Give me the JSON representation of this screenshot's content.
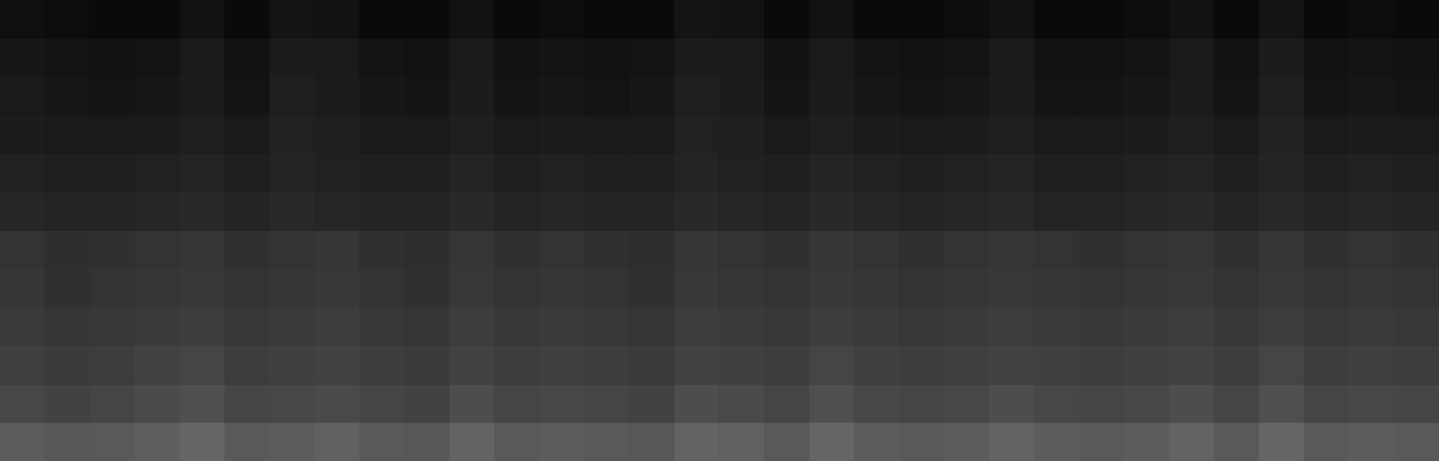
{
  "chart_data": {
    "type": "heatmap",
    "tick_labels": false,
    "grid": false,
    "zlim": [
      0,
      100
    ],
    "cells": [
      [
        6,
        5,
        4,
        4,
        7,
        4,
        8,
        7,
        4,
        4,
        7,
        4,
        5,
        4,
        4,
        8,
        7,
        4,
        7,
        4,
        4,
        5,
        7,
        4,
        4,
        5,
        7,
        4,
        8,
        4,
        5,
        4
      ],
      [
        9,
        8,
        7,
        8,
        10,
        7,
        11,
        10,
        8,
        7,
        10,
        7,
        8,
        7,
        8,
        11,
        10,
        7,
        10,
        8,
        7,
        8,
        10,
        7,
        7,
        8,
        10,
        7,
        11,
        7,
        8,
        7
      ],
      [
        10,
        9,
        8,
        9,
        11,
        8,
        12,
        11,
        9,
        8,
        11,
        8,
        9,
        8,
        9,
        12,
        11,
        8,
        11,
        9,
        8,
        9,
        11,
        8,
        8,
        9,
        11,
        8,
        12,
        8,
        9,
        8
      ],
      [
        11,
        10,
        10,
        11,
        12,
        10,
        13,
        12,
        10,
        10,
        12,
        10,
        11,
        10,
        10,
        13,
        12,
        10,
        12,
        11,
        10,
        11,
        12,
        10,
        10,
        11,
        12,
        10,
        13,
        10,
        11,
        10
      ],
      [
        13,
        12,
        12,
        13,
        14,
        12,
        14,
        13,
        12,
        12,
        14,
        12,
        13,
        12,
        12,
        14,
        13,
        12,
        14,
        13,
        12,
        13,
        14,
        12,
        12,
        13,
        14,
        12,
        14,
        12,
        13,
        12
      ],
      [
        15,
        14,
        14,
        15,
        16,
        14,
        16,
        15,
        14,
        14,
        16,
        14,
        15,
        14,
        14,
        16,
        15,
        14,
        16,
        15,
        14,
        15,
        16,
        14,
        14,
        15,
        16,
        14,
        16,
        14,
        15,
        14
      ],
      [
        20,
        18,
        19,
        20,
        21,
        19,
        20,
        21,
        19,
        18,
        21,
        19,
        20,
        19,
        18,
        21,
        20,
        19,
        21,
        20,
        19,
        20,
        21,
        20,
        19,
        20,
        21,
        19,
        21,
        19,
        20,
        19
      ],
      [
        21,
        19,
        20,
        21,
        22,
        20,
        21,
        22,
        20,
        19,
        22,
        20,
        21,
        20,
        19,
        22,
        21,
        20,
        22,
        21,
        20,
        21,
        22,
        21,
        20,
        21,
        22,
        20,
        22,
        20,
        21,
        20
      ],
      [
        23,
        21,
        22,
        23,
        24,
        22,
        23,
        24,
        22,
        21,
        24,
        22,
        23,
        22,
        21,
        24,
        23,
        22,
        24,
        23,
        22,
        23,
        24,
        23,
        22,
        23,
        24,
        22,
        24,
        22,
        23,
        22
      ],
      [
        25,
        23,
        24,
        26,
        27,
        24,
        25,
        26,
        24,
        23,
        26,
        24,
        25,
        24,
        23,
        26,
        25,
        24,
        27,
        25,
        24,
        25,
        26,
        25,
        24,
        25,
        26,
        24,
        27,
        24,
        25,
        24
      ],
      [
        28,
        26,
        27,
        29,
        31,
        27,
        28,
        29,
        27,
        26,
        30,
        27,
        28,
        27,
        26,
        30,
        29,
        27,
        31,
        28,
        27,
        28,
        30,
        28,
        27,
        28,
        30,
        27,
        31,
        27,
        28,
        27
      ],
      [
        36,
        34,
        35,
        37,
        40,
        35,
        36,
        38,
        35,
        34,
        39,
        35,
        36,
        35,
        34,
        39,
        38,
        35,
        40,
        36,
        35,
        36,
        39,
        36,
        35,
        36,
        39,
        35,
        40,
        35,
        36,
        35
      ]
    ]
  }
}
